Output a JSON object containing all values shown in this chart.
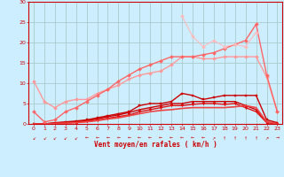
{
  "xlabel": "Vent moyen/en rafales ( km/h )",
  "x_values": [
    0,
    1,
    2,
    3,
    4,
    5,
    6,
    7,
    8,
    9,
    10,
    11,
    12,
    13,
    14,
    15,
    16,
    17,
    18,
    19,
    20,
    21,
    22,
    23
  ],
  "background_color": "#cceeff",
  "grid_color": "#aacccc",
  "lines": [
    {
      "comment": "dark red - square markers - top cluster, starts high at 0 then drops",
      "color": "#cc0000",
      "marker": "s",
      "markersize": 2.0,
      "linewidth": 1.0,
      "y": [
        0.0,
        0.0,
        0.3,
        0.5,
        0.7,
        1.0,
        1.5,
        2.0,
        2.5,
        3.0,
        4.5,
        5.0,
        5.0,
        5.5,
        7.5,
        7.0,
        6.0,
        6.5,
        7.0,
        7.0,
        7.0,
        7.0,
        1.0,
        0.3
      ]
    },
    {
      "comment": "dark red - triangle-up markers",
      "color": "#cc0000",
      "marker": "^",
      "markersize": 2.0,
      "linewidth": 1.0,
      "y": [
        0.0,
        0.0,
        0.2,
        0.3,
        0.5,
        0.8,
        1.2,
        1.8,
        2.2,
        2.8,
        3.5,
        4.0,
        4.5,
        5.0,
        5.0,
        5.5,
        5.5,
        5.5,
        5.5,
        5.5,
        4.5,
        3.5,
        0.5,
        0.0
      ]
    },
    {
      "comment": "dark red - triangle-down markers - lowest cluster",
      "color": "#dd1111",
      "marker": "v",
      "markersize": 2.0,
      "linewidth": 1.0,
      "y": [
        0.0,
        0.0,
        0.1,
        0.2,
        0.4,
        0.6,
        0.9,
        1.4,
        1.8,
        2.2,
        3.0,
        3.5,
        4.0,
        4.5,
        4.5,
        4.8,
        5.0,
        5.0,
        4.8,
        5.0,
        4.0,
        3.0,
        0.3,
        0.0
      ]
    },
    {
      "comment": "medium red curve - rising then bell shape, peak ~4.5 at x=21",
      "color": "#ee4444",
      "marker": "None",
      "markersize": 0,
      "linewidth": 1.2,
      "y": [
        0.0,
        0.0,
        0.1,
        0.2,
        0.3,
        0.5,
        0.8,
        1.2,
        1.5,
        2.0,
        2.5,
        3.0,
        3.3,
        3.5,
        3.8,
        4.0,
        4.0,
        4.0,
        4.0,
        4.2,
        4.5,
        4.0,
        0.5,
        0.0
      ]
    },
    {
      "comment": "light pink - starts at ~10.5, dips, then rises to ~16.5, drops at end",
      "color": "#ff9999",
      "marker": "D",
      "markersize": 2.0,
      "linewidth": 1.0,
      "y": [
        10.5,
        5.5,
        4.0,
        5.5,
        6.0,
        6.0,
        7.5,
        8.5,
        9.5,
        11.0,
        12.0,
        12.5,
        13.0,
        14.5,
        16.5,
        16.5,
        16.0,
        16.0,
        16.5,
        16.5,
        16.5,
        16.5,
        11.5,
        3.0
      ]
    },
    {
      "comment": "medium pink - starts at ~3, rises sharply to ~24.5 at x=21 then drops",
      "color": "#ff6666",
      "marker": "D",
      "markersize": 2.0,
      "linewidth": 1.0,
      "y": [
        3.0,
        0.5,
        1.0,
        3.0,
        4.0,
        5.5,
        7.0,
        8.5,
        10.5,
        12.0,
        13.5,
        14.5,
        15.5,
        16.5,
        16.5,
        16.5,
        17.0,
        17.5,
        18.5,
        19.5,
        20.5,
        24.5,
        12.0,
        3.0
      ]
    },
    {
      "comment": "light pink zigzag - starts at x=14 with peak 26.5, then waves",
      "color": "#ffbbbb",
      "marker": "D",
      "markersize": 2.0,
      "linewidth": 0.8,
      "y": [
        null,
        null,
        null,
        null,
        null,
        null,
        null,
        null,
        null,
        null,
        null,
        null,
        null,
        null,
        26.5,
        21.5,
        19.0,
        20.5,
        19.0,
        19.5,
        19.0,
        22.5,
        null,
        null
      ]
    }
  ],
  "ylim": [
    0,
    30
  ],
  "yticks": [
    0,
    5,
    10,
    15,
    20,
    25,
    30
  ],
  "xlim": [
    -0.5,
    23.5
  ],
  "axis_color": "#cc0000",
  "tick_fontsize": 4.5,
  "xlabel_fontsize": 5.5,
  "arrows": [
    "↙",
    "↙",
    "↙",
    "↙",
    "↙",
    "←",
    "←",
    "←",
    "←",
    "←",
    "←",
    "←",
    "←",
    "←",
    "←",
    "←",
    "←",
    "↗",
    "↑",
    "↑",
    "↑",
    "↑",
    "↗",
    "→"
  ]
}
